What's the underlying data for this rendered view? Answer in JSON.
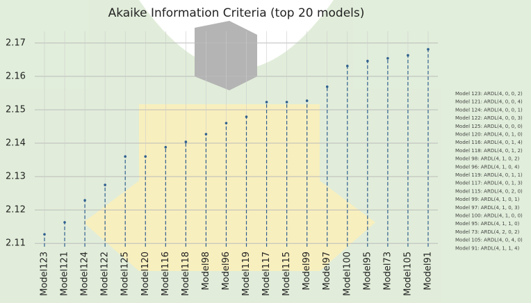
{
  "chart_data": {
    "type": "dropline",
    "title": "Akaike Information Criteria (top 20 models)",
    "categories": [
      "Model123",
      "Model121",
      "Model124",
      "Model122",
      "Model125",
      "Model120",
      "Model116",
      "Model118",
      "Model98",
      "Model96",
      "Model119",
      "Model117",
      "Model115",
      "Model99",
      "Model97",
      "Model100",
      "Model95",
      "Model73",
      "Model105",
      "Model91"
    ],
    "values": [
      2.1127,
      2.1163,
      2.1229,
      2.1275,
      2.136,
      2.136,
      2.1388,
      2.1404,
      2.1427,
      2.146,
      2.1479,
      2.1523,
      2.1523,
      2.1527,
      2.1569,
      2.1631,
      2.1646,
      2.1654,
      2.1663,
      2.1681
    ],
    "color": "#2e5f8f",
    "ylim": [
      2.109,
      2.1735
    ],
    "yticks": [
      2.11,
      2.12,
      2.13,
      2.14,
      2.15,
      2.16,
      2.17
    ],
    "grid": true,
    "legend_notes": [
      "Model 123: ARDL(4, 0, 0, 2)",
      "Model 121: ARDL(4, 0, 0, 4)",
      "Model 124: ARDL(4, 0, 0, 1)",
      "Model 122: ARDL(4, 0, 0, 3)",
      "Model 125: ARDL(4, 0, 0, 0)",
      "Model 120: ARDL(4, 0, 1, 0)",
      "Model 116: ARDL(4, 0, 1, 4)",
      "Model 118: ARDL(4, 0, 1, 2)",
      "Model 98: ARDL(4, 1, 0, 2)",
      "Model 96: ARDL(4, 1, 0, 4)",
      "Model 119: ARDL(4, 0, 1, 1)",
      "Model 117: ARDL(4, 0, 1, 3)",
      "Model 115: ARDL(4, 0, 2, 0)",
      "Model 99: ARDL(4, 1, 0, 1)",
      "Model 97: ARDL(4, 1, 0, 3)",
      "Model 100: ARDL(4, 1, 0, 0)",
      "Model 95: ARDL(4, 1, 1, 0)",
      "Model 73: ARDL(4, 2, 0, 2)",
      "Model 105: ARDL(4, 0, 4, 0)",
      "Model 91: ARDL(4, 1, 1, 4)"
    ]
  }
}
